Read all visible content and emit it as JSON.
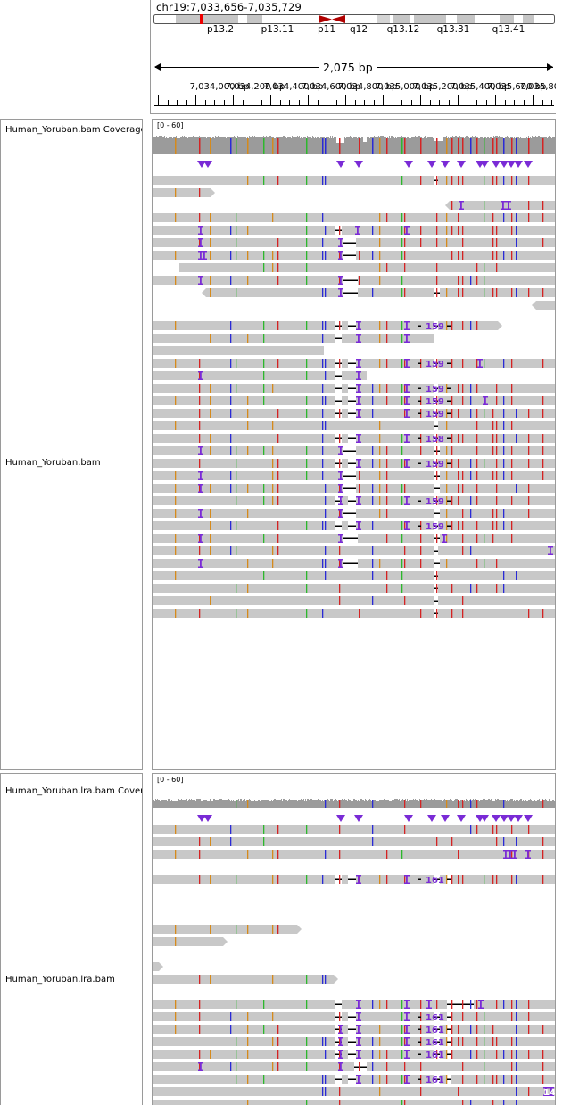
{
  "header": {
    "locus": "chr19:7,033,656-7,035,729",
    "span_label": "2,075 bp"
  },
  "ideogram": {
    "bands": [
      "p13.2",
      "p13.11",
      "p11",
      "q12",
      "q13.12",
      "q13.31",
      "q13.41"
    ]
  },
  "ruler": {
    "ticks": [
      "7,034,000 bp",
      "7,034,200 bp",
      "7,034,400 bp",
      "7,034,600 bp",
      "7,034,800 bp",
      "7,035,000 bp",
      "7,035,200 bp",
      "7,035,400 bp",
      "7,035,600 bp",
      "7,035,800 bp"
    ]
  },
  "tracks": {
    "t1": {
      "coverage_name": "Human_Yoruban.bam Coverage",
      "alignment_name": "Human_Yoruban.bam",
      "range": "[0 - 60]"
    },
    "t2": {
      "coverage_name": "Human_Yoruban.lra.bam Coverage",
      "alignment_name": "Human_Yoruban.lra.bam",
      "range": "[0 - 60]"
    }
  },
  "indel_labels": {
    "t1": [
      "159",
      "159",
      "159",
      "159",
      "159",
      "158",
      "159",
      "159",
      "159"
    ],
    "t2": [
      "161",
      "161",
      "161",
      "161",
      "161",
      "161",
      "14"
    ]
  },
  "colors": {
    "read": "#c8c8c8",
    "coverage": "#9b9b9b",
    "mismatch_A": "#2db82d",
    "mismatch_C": "#2a2ad6",
    "mismatch_G": "#d58a1c",
    "mismatch_T": "#d42424",
    "insertion": "#7a2bd6",
    "centromere": "#b00000"
  }
}
